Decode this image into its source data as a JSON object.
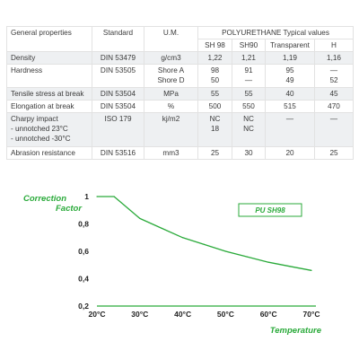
{
  "table": {
    "headers": {
      "property": "General properties",
      "standard": "Standard",
      "um": "U.M.",
      "group": "POLYURETHANE Typical values",
      "sub": [
        "SH 98",
        "SH90",
        "Transparent",
        "H"
      ]
    },
    "rows": [
      {
        "property": [
          "Density"
        ],
        "standard": "DIN 53479",
        "um": [
          "g/cm3"
        ],
        "values": [
          [
            "1,22"
          ],
          [
            "1,21"
          ],
          [
            "1,19"
          ],
          [
            "1,16"
          ]
        ]
      },
      {
        "property": [
          "Hardness"
        ],
        "standard": "DIN 53505",
        "um": [
          "Shore A",
          "Shore D"
        ],
        "values": [
          [
            "98",
            "50"
          ],
          [
            "91",
            "—"
          ],
          [
            "95",
            "49"
          ],
          [
            "—",
            "52"
          ]
        ]
      },
      {
        "property": [
          "Tensile stress at break"
        ],
        "standard": "DIN 53504",
        "um": [
          "MPa"
        ],
        "values": [
          [
            "55"
          ],
          [
            "55"
          ],
          [
            "40"
          ],
          [
            "45"
          ]
        ]
      },
      {
        "property": [
          "Elongation at break"
        ],
        "standard": "DIN 53504",
        "um": [
          "%"
        ],
        "values": [
          [
            "500"
          ],
          [
            "550"
          ],
          [
            "515"
          ],
          [
            "470"
          ]
        ]
      },
      {
        "property": [
          "Charpy impact",
          " - unnotched 23°C",
          " - unnotched -30°C"
        ],
        "standard": "ISO 179",
        "um": [
          "kj/m2"
        ],
        "values": [
          [
            "NC",
            "18"
          ],
          [
            "NC",
            "NC"
          ],
          [
            "—"
          ],
          [
            "—"
          ]
        ]
      },
      {
        "property": [
          "Abrasion resistance"
        ],
        "standard": "DIN 53516",
        "um": [
          "mm3"
        ],
        "values": [
          [
            "25"
          ],
          [
            "30"
          ],
          [
            "20"
          ],
          [
            "25"
          ]
        ]
      }
    ]
  },
  "chart_data": {
    "type": "line",
    "ylabel_lines": [
      "Correction",
      "Factor"
    ],
    "xlabel": "Temperature",
    "x_tick_labels": [
      "20°C",
      "30°C",
      "40°C",
      "50°C",
      "60°C",
      "70°C"
    ],
    "y_tick_labels": [
      "1",
      "0,8",
      "0,6",
      "0,4",
      "0,2"
    ],
    "xlim": [
      20,
      70
    ],
    "ylim": [
      0.2,
      1.0
    ],
    "legend_label": "PU SH98",
    "series": [
      {
        "name": "PU SH98",
        "color": "#2aaa3a",
        "x": [
          20,
          24,
          30,
          35,
          40,
          45,
          50,
          55,
          60,
          65,
          70
        ],
        "y": [
          1.0,
          1.0,
          0.84,
          0.77,
          0.7,
          0.65,
          0.6,
          0.56,
          0.52,
          0.49,
          0.46
        ]
      }
    ],
    "grid": false
  }
}
